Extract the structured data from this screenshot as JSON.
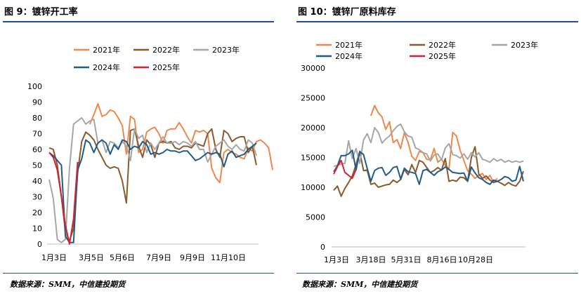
{
  "left": {
    "title": "图 9：镀锌开工率",
    "source": "数据来源：SMM，中信建投期货"
  },
  "right": {
    "title": "图 10：镀锌厂原料库存",
    "source": "数据来源：SMM，中信建投期货"
  },
  "colors": {
    "2021年": "#f0874c",
    "2022年": "#8b5a2b",
    "2023年": "#a6a6a6",
    "2024年": "#1f5c8b",
    "2025年": "#d62230",
    "rule": "#1f4e96"
  },
  "chart_data": [
    {
      "type": "line",
      "title": "图 9：镀锌开工率",
      "x_range": [
        1,
        52
      ],
      "x_unit": "week",
      "ylim": [
        0,
        100
      ],
      "yticks": [
        0,
        10,
        20,
        30,
        40,
        50,
        60,
        70,
        80,
        90,
        100
      ],
      "xtick_labels": [
        "1月3日",
        "3月5日",
        "5月6日",
        "7月9日",
        "9月9日",
        "11月10日"
      ],
      "grid": false,
      "legend": "top",
      "series": [
        {
          "name": "2021年",
          "start_week": 11,
          "values": [
            76,
            82,
            89,
            81,
            82,
            85,
            84,
            80,
            75,
            57,
            81,
            79,
            58,
            60,
            71,
            73,
            74,
            70,
            64,
            72,
            73,
            73,
            77,
            73,
            68,
            64,
            72,
            71,
            72,
            70,
            48,
            42,
            39,
            58,
            60,
            58,
            57,
            55,
            54,
            61,
            59,
            65,
            66,
            64,
            61,
            47
          ]
        },
        {
          "name": "2022年",
          "start_week": 1,
          "values": [
            61,
            60,
            50,
            30,
            8,
            2,
            10,
            45,
            65,
            71,
            69,
            66,
            60,
            55,
            50,
            48,
            49,
            48,
            40,
            26,
            72,
            73,
            62,
            55,
            66,
            63,
            55,
            64,
            65,
            64,
            65,
            61,
            60,
            62,
            62,
            61,
            64,
            63,
            62,
            70,
            73,
            60,
            55,
            72,
            70,
            65,
            67,
            68,
            68,
            58,
            62,
            50
          ]
        },
        {
          "name": "2023年",
          "start_week": 1,
          "values": [
            41,
            29,
            3,
            1,
            3,
            48,
            76,
            78,
            80,
            76,
            78,
            79,
            64,
            66,
            58,
            65,
            64,
            61,
            65,
            62,
            53,
            73,
            67,
            69,
            58,
            64,
            60,
            64,
            68,
            64,
            64,
            65,
            63,
            65,
            64,
            62,
            65,
            60,
            60,
            52,
            57,
            62,
            64,
            66,
            62,
            60,
            63,
            60,
            59,
            66,
            64,
            56
          ]
        },
        {
          "name": "2024年",
          "start_week": 1,
          "values": [
            58,
            56,
            53,
            50,
            5,
            1,
            1,
            47,
            54,
            66,
            64,
            58,
            64,
            66,
            64,
            57,
            63,
            60,
            66,
            65,
            60,
            62,
            61,
            65,
            63,
            57,
            58,
            57,
            58,
            60,
            59,
            59,
            58,
            59,
            59,
            56,
            53,
            54,
            56,
            58,
            57,
            58,
            57,
            49,
            57,
            59,
            55,
            56,
            57,
            60,
            62,
            64
          ]
        },
        {
          "name": "2025年",
          "start_week": 1,
          "values": [
            58,
            55,
            47,
            30,
            12,
            0,
            16,
            52
          ]
        }
      ]
    },
    {
      "type": "line",
      "title": "图 10：镀锌厂原料库存",
      "x_range": [
        1,
        52
      ],
      "x_unit": "week",
      "ylim": [
        0,
        30000
      ],
      "yticks": [
        0,
        5000,
        10000,
        15000,
        20000,
        25000,
        30000
      ],
      "xtick_labels": [
        "1月3日",
        "3月18日",
        "5月31日",
        "8月16日",
        "10月28日"
      ],
      "grid": false,
      "legend": "top",
      "series": [
        {
          "name": "2021年",
          "start_week": 11,
          "values": [
            22000,
            23700,
            22500,
            21800,
            19700,
            21000,
            17500,
            18000,
            16500,
            19200,
            17500,
            15200,
            14500,
            16000,
            15800,
            14700,
            14600,
            16500,
            14200,
            14700,
            13700,
            13100,
            19200,
            18600,
            16200,
            14500,
            12800,
            12200,
            11500,
            12000,
            12300,
            11300,
            12000,
            10800,
            11500
          ]
        },
        {
          "name": "2022年",
          "start_week": 1,
          "values": [
            9500,
            10200,
            8500,
            9800,
            10800,
            11900,
            13800,
            16000,
            12800,
            12900,
            10500,
            10700,
            10000,
            10200,
            10400,
            10500,
            11200,
            10800,
            11300,
            13000,
            12100,
            13800,
            12500,
            14500,
            14200,
            13300,
            12500,
            12800,
            13300,
            12900,
            14800,
            11000,
            11200,
            11000,
            11700,
            11600,
            11000,
            15000,
            16800,
            12200,
            11500,
            11900,
            11200,
            10800,
            11000,
            10700,
            10300,
            10800,
            10400,
            10200,
            11000,
            12700
          ]
        },
        {
          "name": "2023年",
          "start_week": 1,
          "values": [
            13500,
            13700,
            13900,
            14000,
            17800,
            14800,
            16500,
            14000,
            17900,
            19000,
            17500,
            20000,
            19200,
            17400,
            18100,
            18600,
            19500,
            20200,
            20600,
            19300,
            18600,
            18400,
            16600,
            16300,
            15800,
            15600,
            14400,
            15400,
            15600,
            14600,
            16600,
            17300,
            15500,
            15300,
            14900,
            15600,
            14700,
            15800,
            15100,
            15800,
            14700,
            14500,
            14200,
            14800,
            14400,
            14700,
            14200,
            14500,
            14200,
            14400,
            14200,
            14400
          ]
        },
        {
          "name": "2024年",
          "start_week": 1,
          "values": [
            12600,
            13600,
            15300,
            15300,
            15600,
            16200,
            12900,
            16000,
            15500,
            13200,
            11000,
            12800,
            13200,
            13300,
            12000,
            12500,
            13300,
            13500,
            11400,
            13200,
            12600,
            12500,
            12300,
            10500,
            12800,
            13000,
            12500,
            12000,
            12600,
            12900,
            13400,
            13000,
            12500,
            12400,
            12300,
            12400,
            11000,
            13400,
            12400,
            11600,
            11300,
            10800,
            10500,
            11200,
            11000,
            11300,
            11800,
            11600,
            11000,
            11200,
            13500,
            11000
          ]
        },
        {
          "name": "2025年",
          "start_week": 1,
          "values": [
            12200,
            13500,
            14500,
            12500,
            12000,
            11500,
            13000
          ]
        }
      ]
    }
  ]
}
